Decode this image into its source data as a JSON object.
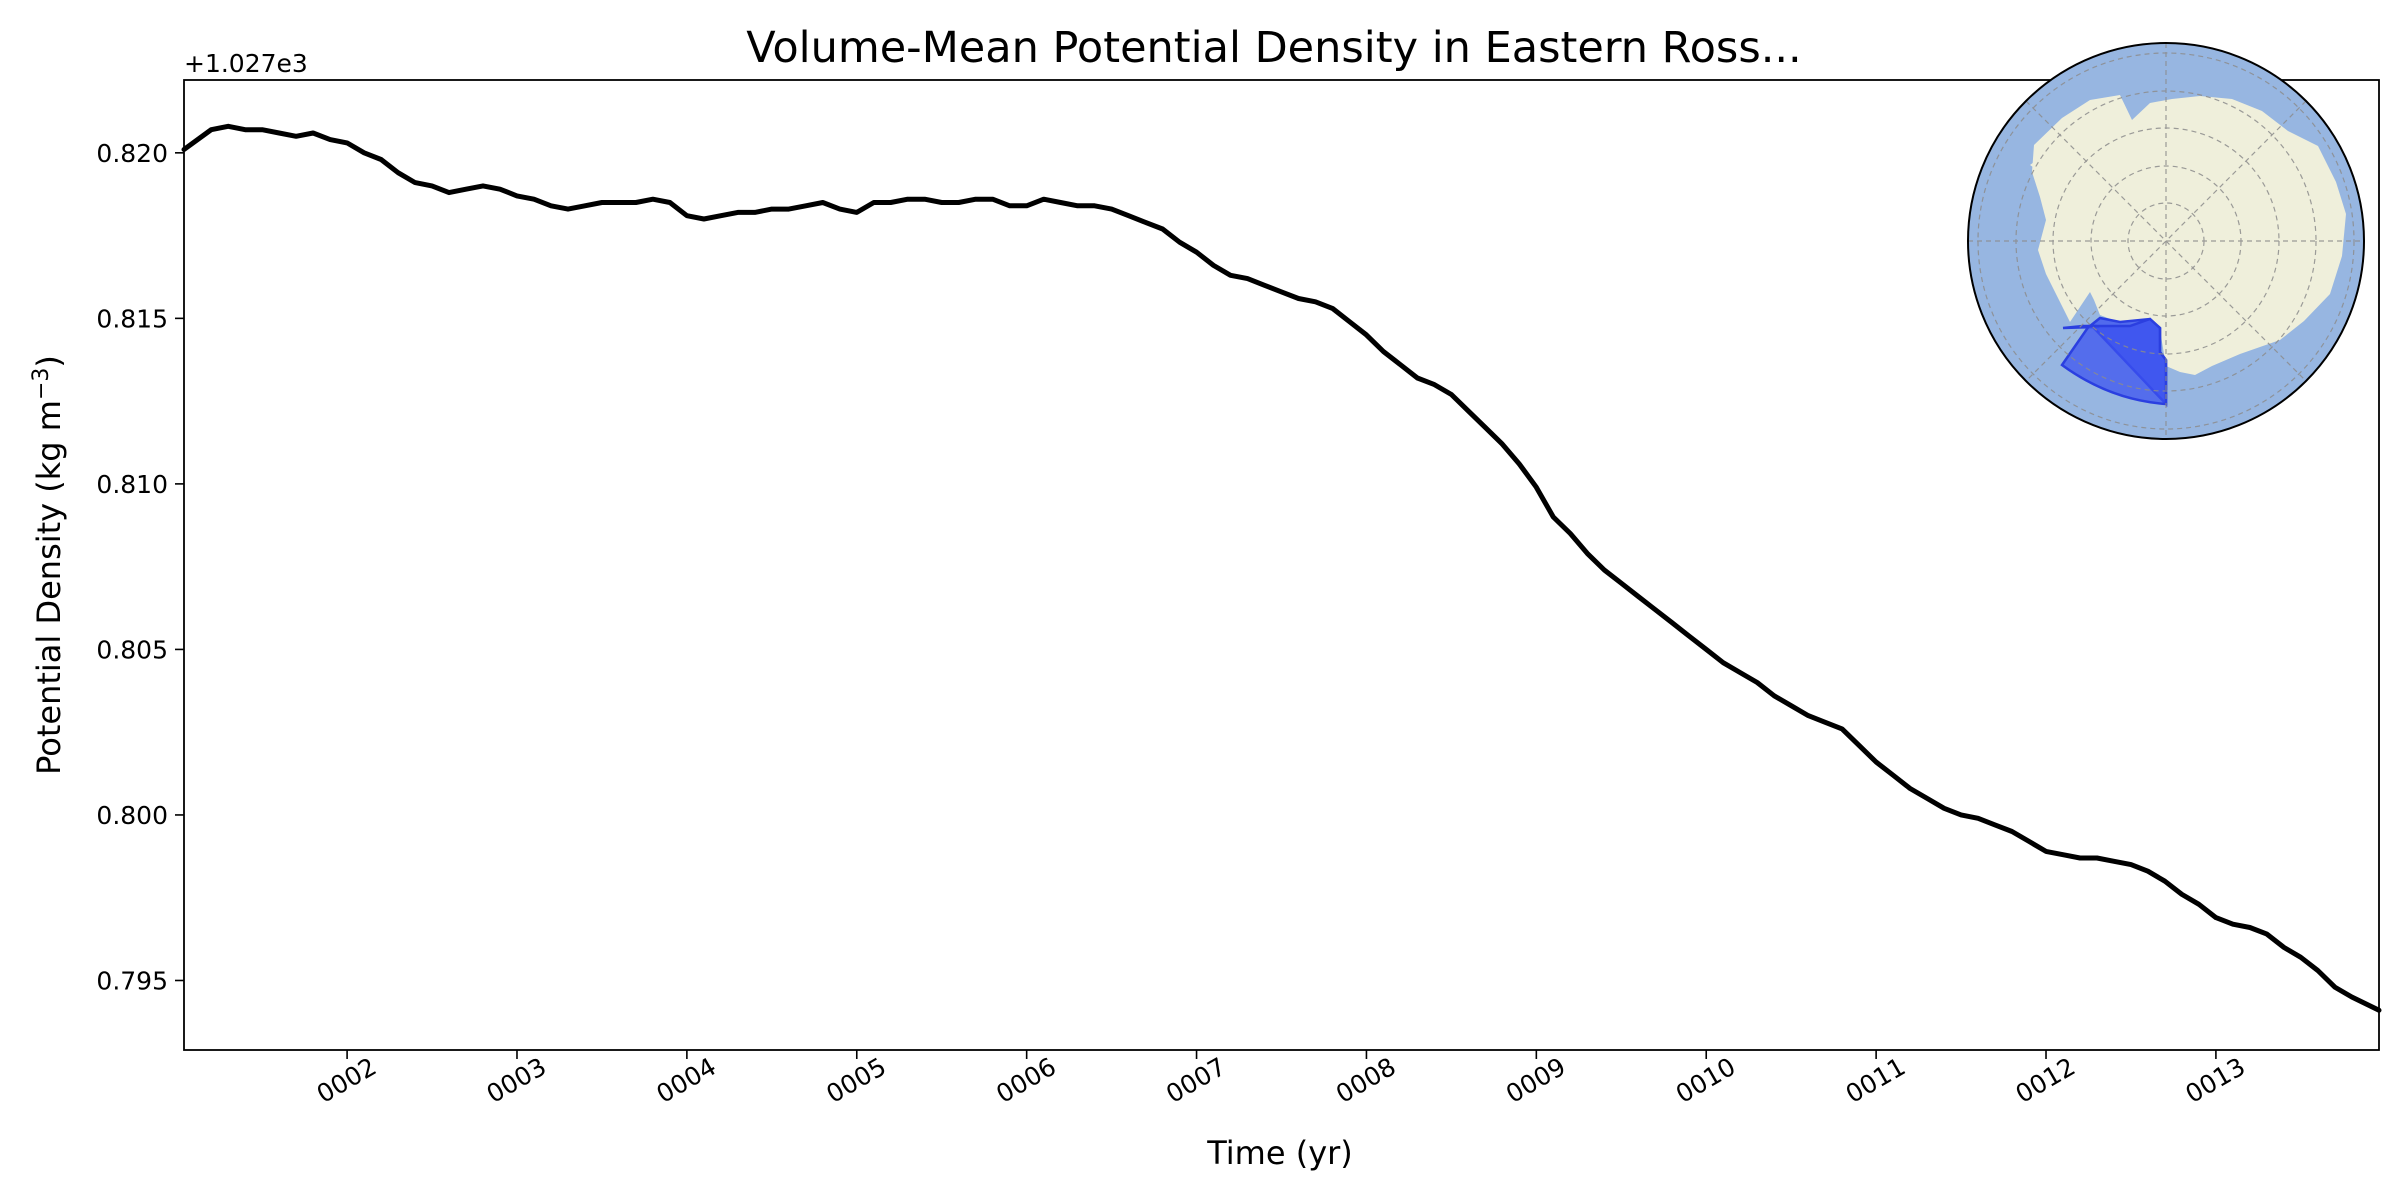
{
  "chart_data": {
    "type": "line",
    "title": "Volume-Mean Potential Density in Eastern Ross...",
    "xlabel": "Time (yr)",
    "ylabel_prefix": "Potential Density (kg m",
    "ylabel_superscript": "−3",
    "ylabel_suffix": ")",
    "offset_text": "+1.027e3",
    "y_offset": 1027,
    "xlim": [
      1.04,
      13.96
    ],
    "ylim": [
      0.7929,
      0.8222
    ],
    "x_ticks": [
      {
        "value": 2,
        "label": "0002"
      },
      {
        "value": 3,
        "label": "0003"
      },
      {
        "value": 4,
        "label": "0004"
      },
      {
        "value": 5,
        "label": "0005"
      },
      {
        "value": 6,
        "label": "0006"
      },
      {
        "value": 7,
        "label": "0007"
      },
      {
        "value": 8,
        "label": "0008"
      },
      {
        "value": 9,
        "label": "0009"
      },
      {
        "value": 10,
        "label": "0010"
      },
      {
        "value": 11,
        "label": "0011"
      },
      {
        "value": 12,
        "label": "0012"
      },
      {
        "value": 13,
        "label": "0013"
      }
    ],
    "y_ticks": [
      {
        "value": 0.795,
        "label": "0.795"
      },
      {
        "value": 0.8,
        "label": "0.800"
      },
      {
        "value": 0.805,
        "label": "0.805"
      },
      {
        "value": 0.81,
        "label": "0.810"
      },
      {
        "value": 0.815,
        "label": "0.815"
      },
      {
        "value": 0.82,
        "label": "0.820"
      }
    ],
    "grid": false,
    "line_color": "#000000",
    "series": [
      {
        "x": [
          1.04,
          1.2,
          1.3,
          1.4,
          1.5,
          1.6,
          1.7,
          1.8,
          1.9,
          2.0,
          2.1,
          2.2,
          2.3,
          2.4,
          2.5,
          2.6,
          2.7,
          2.8,
          2.9,
          3.0,
          3.1,
          3.2,
          3.3,
          3.4,
          3.5,
          3.6,
          3.7,
          3.8,
          3.9,
          4.0,
          4.1,
          4.2,
          4.3,
          4.4,
          4.5,
          4.6,
          4.7,
          4.8,
          4.9,
          5.0,
          5.1,
          5.2,
          5.3,
          5.4,
          5.5,
          5.6,
          5.7,
          5.8,
          5.9,
          6.0,
          6.1,
          6.2,
          6.3,
          6.4,
          6.5,
          6.6,
          6.7,
          6.8,
          6.9,
          7.0,
          7.1,
          7.2,
          7.3,
          7.4,
          7.5,
          7.6,
          7.7,
          7.8,
          7.9,
          8.0,
          8.1,
          8.2,
          8.3,
          8.4,
          8.5,
          8.6,
          8.7,
          8.8,
          8.9,
          9.0,
          9.1,
          9.2,
          9.3,
          9.4,
          9.5,
          9.6,
          9.7,
          9.8,
          9.9,
          10.0,
          10.1,
          10.2,
          10.3,
          10.4,
          10.5,
          10.6,
          10.7,
          10.8,
          10.9,
          11.0,
          11.1,
          11.2,
          11.3,
          11.4,
          11.5,
          11.6,
          11.7,
          11.8,
          11.9,
          12.0,
          12.1,
          12.2,
          12.3,
          12.4,
          12.5,
          12.6,
          12.7,
          12.8,
          12.9,
          13.0,
          13.1,
          13.2,
          13.3,
          13.4,
          13.5,
          13.6,
          13.7,
          13.8,
          13.96
        ],
        "y": [
          0.8201,
          0.8207,
          0.8208,
          0.8207,
          0.8207,
          0.8206,
          0.8205,
          0.8206,
          0.8204,
          0.8203,
          0.82,
          0.8198,
          0.8194,
          0.8191,
          0.819,
          0.8188,
          0.8189,
          0.819,
          0.8189,
          0.8187,
          0.8186,
          0.8184,
          0.8183,
          0.8184,
          0.8185,
          0.8185,
          0.8185,
          0.8186,
          0.8185,
          0.8181,
          0.818,
          0.8181,
          0.8182,
          0.8182,
          0.8183,
          0.8183,
          0.8184,
          0.8185,
          0.8183,
          0.8182,
          0.8185,
          0.8185,
          0.8186,
          0.8186,
          0.8185,
          0.8185,
          0.8186,
          0.8186,
          0.8184,
          0.8184,
          0.8186,
          0.8185,
          0.8184,
          0.8184,
          0.8183,
          0.8181,
          0.8179,
          0.8177,
          0.8173,
          0.817,
          0.8166,
          0.8163,
          0.8162,
          0.816,
          0.8158,
          0.8156,
          0.8155,
          0.8153,
          0.8149,
          0.8145,
          0.814,
          0.8136,
          0.8132,
          0.813,
          0.8127,
          0.8122,
          0.8117,
          0.8112,
          0.8106,
          0.8099,
          0.809,
          0.8085,
          0.8079,
          0.8074,
          0.807,
          0.8066,
          0.8062,
          0.8058,
          0.8054,
          0.805,
          0.8046,
          0.8043,
          0.804,
          0.8036,
          0.8033,
          0.803,
          0.8028,
          0.8026,
          0.8021,
          0.8016,
          0.8012,
          0.8008,
          0.8005,
          0.8002,
          0.8,
          0.7999,
          0.7997,
          0.7995,
          0.7992,
          0.7989,
          0.7988,
          0.7987,
          0.7987,
          0.7986,
          0.7985,
          0.7983,
          0.798,
          0.7976,
          0.7973,
          0.7969,
          0.7967,
          0.7966,
          0.7964,
          0.796,
          0.7957,
          0.7953,
          0.7948,
          0.7945,
          0.7941
        ]
      }
    ],
    "inset_map": {
      "type": "south-polar map",
      "ocean_color": "#97b6e1",
      "land_color": "#efefdb",
      "region_color": "#3a50f0",
      "region": "Eastern Ross Sea"
    }
  }
}
